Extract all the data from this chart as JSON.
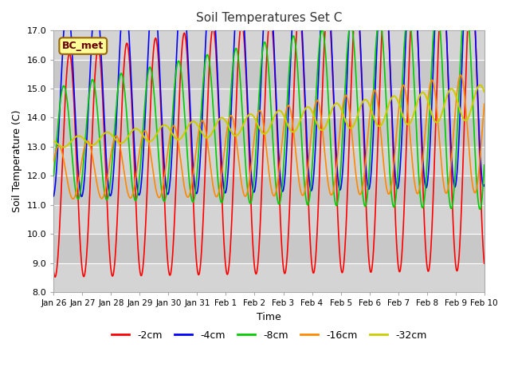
{
  "title": "Soil Temperatures Set C",
  "xlabel": "Time",
  "ylabel": "Soil Temperature (C)",
  "ylim": [
    8.0,
    17.0
  ],
  "yticks": [
    8.0,
    9.0,
    10.0,
    11.0,
    12.0,
    13.0,
    14.0,
    15.0,
    16.0,
    17.0
  ],
  "colors": {
    "-2cm": "#ff0000",
    "-4cm": "#0000ff",
    "-8cm": "#00cc00",
    "-16cm": "#ff8800",
    "-32cm": "#cccc00"
  },
  "legend_labels": [
    "-2cm",
    "-4cm",
    "-8cm",
    "-16cm",
    "-32cm"
  ],
  "annotation": "BC_met",
  "annotation_facecolor": "#ffff99",
  "annotation_edgecolor": "#996600",
  "annotation_textcolor": "#660000",
  "date_labels": [
    "Jan 26",
    "Jan 27",
    "Jan 28",
    "Jan 29",
    "Jan 30",
    "Jan 31",
    "Feb 1",
    "Feb 2",
    "Feb 3",
    "Feb 4",
    "Feb 5",
    "Feb 6",
    "Feb 7",
    "Feb 8",
    "Feb 9",
    "Feb 10"
  ],
  "n_points": 1440,
  "base_temp": 13.25,
  "trend_slope": 0.095,
  "band_colors": [
    "#d4d4d4",
    "#c8c8c8"
  ],
  "grid_color": "#ffffff"
}
